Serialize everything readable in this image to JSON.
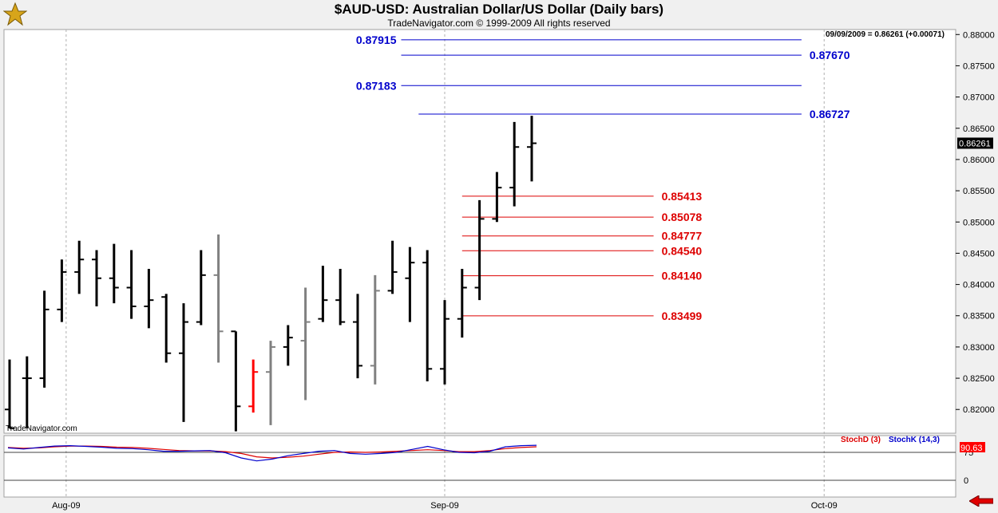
{
  "header": {
    "title": "$AUD-USD:  Australian Dollar/US Dollar  (Daily bars)",
    "copyright": "TradeNavigator.com © 1999-2009 All rights reserved",
    "readout": "09/09/2009 = 0.86261 (+0.00071)",
    "watermark": "TradeNavigator.com"
  },
  "colors": {
    "price_bar": "#000000",
    "price_bar_alt": "#808080",
    "price_bar_down": "#ff0000",
    "resistance": "#0000cc",
    "support": "#dd0000",
    "stoch_d": "#dd0000",
    "stoch_k": "#0000cc"
  },
  "chart_data": [
    {
      "type": "ohlc",
      "title": "$AUD-USD:  Australian Dollar/US Dollar  (Daily bars)",
      "y_ticks": [
        "0.88000",
        "0.87500",
        "0.87000",
        "0.86500",
        "0.86000",
        "0.85500",
        "0.85000",
        "0.84500",
        "0.84000",
        "0.83500",
        "0.83000",
        "0.82500",
        "0.82000"
      ],
      "ylim": [
        0.8162,
        0.8808
      ],
      "x_labels": [
        {
          "label": "Aug-09",
          "index": 3.25
        },
        {
          "label": "Sep-09",
          "index": 25.0
        },
        {
          "label": "Oct-09",
          "index": 46.8
        }
      ],
      "last_price": "0.86261",
      "bars": [
        {
          "o": 0.82,
          "h": 0.828,
          "l": 0.817,
          "c": 0.817,
          "color": "black"
        },
        {
          "o": 0.825,
          "h": 0.8285,
          "l": 0.817,
          "c": 0.825,
          "color": "black"
        },
        {
          "o": 0.825,
          "h": 0.839,
          "l": 0.8235,
          "c": 0.836,
          "color": "black"
        },
        {
          "o": 0.836,
          "h": 0.844,
          "l": 0.834,
          "c": 0.842,
          "color": "black"
        },
        {
          "o": 0.842,
          "h": 0.847,
          "l": 0.8385,
          "c": 0.844,
          "color": "black"
        },
        {
          "o": 0.844,
          "h": 0.8455,
          "l": 0.8365,
          "c": 0.841,
          "color": "black"
        },
        {
          "o": 0.841,
          "h": 0.8465,
          "l": 0.837,
          "c": 0.8395,
          "color": "black"
        },
        {
          "o": 0.8395,
          "h": 0.8455,
          "l": 0.8345,
          "c": 0.8365,
          "color": "black"
        },
        {
          "o": 0.8365,
          "h": 0.8425,
          "l": 0.833,
          "c": 0.8375,
          "color": "black"
        },
        {
          "o": 0.838,
          "h": 0.8385,
          "l": 0.8275,
          "c": 0.829,
          "color": "black"
        },
        {
          "o": 0.829,
          "h": 0.837,
          "l": 0.818,
          "c": 0.834,
          "color": "black"
        },
        {
          "o": 0.834,
          "h": 0.8455,
          "l": 0.8335,
          "c": 0.8415,
          "color": "black"
        },
        {
          "o": 0.8415,
          "h": 0.848,
          "l": 0.8275,
          "c": 0.8325,
          "color": "gray"
        },
        {
          "o": 0.8325,
          "h": 0.8325,
          "l": 0.8165,
          "c": 0.8205,
          "color": "black"
        },
        {
          "o": 0.8205,
          "h": 0.828,
          "l": 0.8195,
          "c": 0.826,
          "color": "red"
        },
        {
          "o": 0.826,
          "h": 0.831,
          "l": 0.8175,
          "c": 0.83,
          "color": "gray"
        },
        {
          "o": 0.83,
          "h": 0.8335,
          "l": 0.827,
          "c": 0.8315,
          "color": "black"
        },
        {
          "o": 0.831,
          "h": 0.8395,
          "l": 0.8215,
          "c": 0.834,
          "color": "gray"
        },
        {
          "o": 0.8345,
          "h": 0.843,
          "l": 0.834,
          "c": 0.8375,
          "color": "black"
        },
        {
          "o": 0.8375,
          "h": 0.8425,
          "l": 0.8335,
          "c": 0.834,
          "color": "black"
        },
        {
          "o": 0.834,
          "h": 0.8385,
          "l": 0.825,
          "c": 0.827,
          "color": "black"
        },
        {
          "o": 0.827,
          "h": 0.8415,
          "l": 0.824,
          "c": 0.839,
          "color": "gray"
        },
        {
          "o": 0.839,
          "h": 0.847,
          "l": 0.8385,
          "c": 0.842,
          "color": "black"
        },
        {
          "o": 0.841,
          "h": 0.846,
          "l": 0.834,
          "c": 0.8435,
          "color": "black"
        },
        {
          "o": 0.8435,
          "h": 0.8455,
          "l": 0.8245,
          "c": 0.8265,
          "color": "black"
        },
        {
          "o": 0.8265,
          "h": 0.8375,
          "l": 0.824,
          "c": 0.8345,
          "color": "black"
        },
        {
          "o": 0.8345,
          "h": 0.8425,
          "l": 0.8315,
          "c": 0.8395,
          "color": "black"
        },
        {
          "o": 0.8395,
          "h": 0.8535,
          "l": 0.8375,
          "c": 0.8505,
          "color": "black"
        },
        {
          "o": 0.8505,
          "h": 0.858,
          "l": 0.85,
          "c": 0.8555,
          "color": "black"
        },
        {
          "o": 0.8555,
          "h": 0.866,
          "l": 0.8525,
          "c": 0.862,
          "color": "black"
        },
        {
          "o": 0.862,
          "h": 0.867,
          "l": 0.8565,
          "c": 0.8626,
          "color": "black"
        }
      ],
      "levels": [
        {
          "label": "0.87915",
          "value": 0.87915,
          "kind": "resistance",
          "label_side": "left",
          "from": 22.5,
          "to": 45.5
        },
        {
          "label": "0.87670",
          "value": 0.8767,
          "kind": "resistance",
          "label_side": "right",
          "from": 22.5,
          "to": 45.5
        },
        {
          "label": "0.87183",
          "value": 0.87183,
          "kind": "resistance",
          "label_side": "left",
          "from": 22.5,
          "to": 45.5
        },
        {
          "label": "0.86727",
          "value": 0.86727,
          "kind": "resistance",
          "label_side": "right",
          "from": 23.5,
          "to": 45.5
        },
        {
          "label": "0.85413",
          "value": 0.85413,
          "kind": "support",
          "label_side": "right",
          "from": 26.0,
          "to": 37.0
        },
        {
          "label": "0.85078",
          "value": 0.85078,
          "kind": "support",
          "label_side": "right",
          "from": 26.0,
          "to": 37.0
        },
        {
          "label": "0.84777",
          "value": 0.84777,
          "kind": "support",
          "label_side": "right",
          "from": 26.0,
          "to": 37.0
        },
        {
          "label": "0.84540",
          "value": 0.8454,
          "kind": "support",
          "label_side": "right",
          "from": 26.0,
          "to": 37.0
        },
        {
          "label": "0.84140",
          "value": 0.8414,
          "kind": "support",
          "label_side": "right",
          "from": 26.0,
          "to": 37.0
        },
        {
          "label": "0.83499",
          "value": 0.83499,
          "kind": "support",
          "label_side": "right",
          "from": 26.0,
          "to": 37.0
        }
      ]
    },
    {
      "type": "line",
      "legend": [
        "StochD (3)",
        "StochK (14,3)"
      ],
      "y_ticks": [
        "75",
        "0"
      ],
      "ylim": [
        0,
        100
      ],
      "last_value": "90.63",
      "series": [
        {
          "name": "StochD (3)",
          "values": [
            88,
            86,
            87,
            90,
            92,
            92,
            91,
            89,
            88,
            86,
            83,
            80,
            79,
            79,
            77,
            72,
            63,
            60,
            62,
            65,
            70,
            75,
            76,
            75,
            76,
            78,
            80,
            82,
            80,
            77,
            77,
            80,
            85,
            88,
            90
          ]
        },
        {
          "name": "StochK (14,3)",
          "values": [
            87,
            84,
            88,
            92,
            93,
            91,
            89,
            86,
            85,
            82,
            78,
            78,
            79,
            80,
            74,
            60,
            52,
            57,
            66,
            72,
            78,
            80,
            72,
            70,
            72,
            75,
            83,
            91,
            82,
            75,
            74,
            78,
            90,
            93,
            94
          ]
        }
      ]
    }
  ]
}
